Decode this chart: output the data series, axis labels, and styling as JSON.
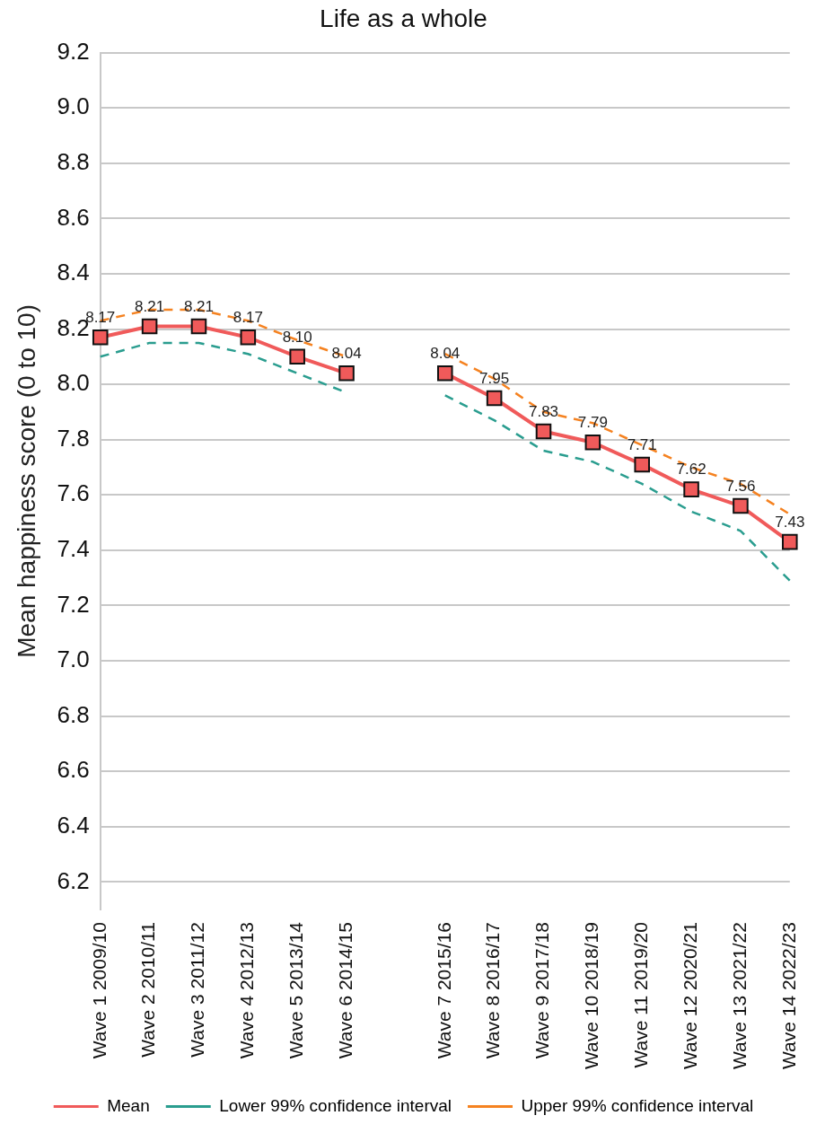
{
  "chart_data": {
    "type": "line",
    "title": "Life as a whole",
    "ylabel": "Mean happiness score (0 to 10)",
    "categories": [
      "Wave 1 2009/10",
      "Wave 2 2010/11",
      "Wave 3 2011/12",
      "Wave 4 2012/13",
      "Wave 5 2013/14",
      "Wave 6 2014/15",
      null,
      "Wave 7 2015/16",
      "Wave 8 2016/17",
      "Wave 9 2017/18",
      "Wave 10 2018/19",
      "Wave 11 2019/20",
      "Wave 12 2020/21",
      "Wave 13 2021/22",
      "Wave 14 2022/23"
    ],
    "series": [
      {
        "name": "Mean",
        "color": "#f05a5a",
        "marker": "square",
        "line_style": "solid",
        "values": [
          8.17,
          8.21,
          8.21,
          8.17,
          8.1,
          8.04,
          null,
          8.04,
          7.95,
          7.83,
          7.79,
          7.71,
          7.62,
          7.56,
          7.43
        ],
        "value_labels": [
          "8.17",
          "8.21",
          "8.21",
          "8.17",
          "8.10",
          "8.04",
          null,
          "8.04",
          "7.95",
          "7.83",
          "7.79",
          "7.71",
          "7.62",
          "7.56",
          "7.43"
        ]
      },
      {
        "name": "Lower 99% confidence interval",
        "color": "#2a9d8f",
        "marker": "none",
        "line_style": "dashed",
        "values": [
          8.1,
          8.15,
          8.15,
          8.11,
          8.04,
          7.97,
          null,
          7.96,
          7.87,
          7.76,
          7.72,
          7.64,
          7.54,
          7.47,
          7.29
        ]
      },
      {
        "name": "Upper 99% confidence interval",
        "color": "#f58220",
        "marker": "none",
        "line_style": "dashed",
        "values": [
          8.23,
          8.27,
          8.27,
          8.23,
          8.16,
          8.1,
          null,
          8.11,
          8.02,
          7.9,
          7.86,
          7.78,
          7.7,
          7.64,
          7.53
        ]
      }
    ],
    "ylim": [
      6.1,
      9.2
    ],
    "yticks": [
      {
        "value": 6.2,
        "label": "6.2"
      },
      {
        "value": 6.4,
        "label": "6.4"
      },
      {
        "value": 6.6,
        "label": "6.6"
      },
      {
        "value": 6.8,
        "label": "6.8"
      },
      {
        "value": 7.0,
        "label": "7.0"
      },
      {
        "value": 7.2,
        "label": "7.2"
      },
      {
        "value": 7.4,
        "label": "7.4"
      },
      {
        "value": 7.6,
        "label": "7.6"
      },
      {
        "value": 7.8,
        "label": "7.8"
      },
      {
        "value": 8.0,
        "label": "8.0"
      },
      {
        "value": 8.2,
        "label": "8.2"
      },
      {
        "value": 8.4,
        "label": "8.4"
      },
      {
        "value": 8.6,
        "label": "8.6"
      },
      {
        "value": 8.8,
        "label": "8.8"
      },
      {
        "value": 9.0,
        "label": "9.0"
      },
      {
        "value": 9.2,
        "label": "9.2"
      }
    ],
    "grid": "y",
    "legend": "bottom"
  }
}
